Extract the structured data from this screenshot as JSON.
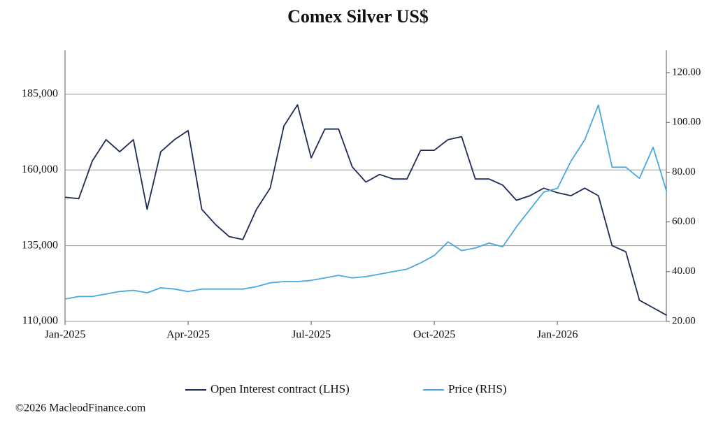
{
  "chart_data": {
    "type": "line",
    "title": "Comex Silver US$",
    "source": "©2026 MacleodFinance.com",
    "categories": [
      "Jan-2025",
      null,
      null,
      null,
      null,
      null,
      null,
      null,
      null,
      "Apr-2025",
      null,
      null,
      null,
      null,
      null,
      null,
      null,
      null,
      "Jul-2025",
      null,
      null,
      null,
      null,
      null,
      null,
      null,
      null,
      "Oct-2025",
      null,
      null,
      null,
      null,
      null,
      null,
      null,
      null,
      "Jan-2026",
      null,
      null,
      null,
      null,
      null,
      null,
      null,
      null
    ],
    "series": [
      {
        "name": "Open Interest contract (LHS)",
        "color": "#1f2a55",
        "values": [
          151000,
          150500,
          163000,
          170000,
          166000,
          170000,
          147000,
          166000,
          170000,
          173000,
          147000,
          142000,
          138000,
          137000,
          147000,
          154000,
          174500,
          181500,
          164000,
          173500,
          173500,
          161000,
          156000,
          158500,
          157000,
          157000,
          166500,
          166500,
          170000,
          171000,
          157000,
          157000,
          155000,
          150000,
          151500,
          154000,
          152500,
          151500,
          154000,
          151500,
          135000,
          133000,
          117000,
          114500,
          112000
        ]
      },
      {
        "name": "Price (RHS)",
        "color": "#4aa8df",
        "axis": "y2",
        "values": [
          29,
          30,
          30,
          31,
          32,
          32.5,
          31.5,
          33.5,
          33,
          32,
          33,
          33,
          33,
          33,
          34,
          35.5,
          36,
          36,
          36.5,
          37.5,
          38.5,
          37.5,
          38,
          39,
          40,
          41,
          43.5,
          46.5,
          52,
          48.5,
          49.5,
          51.5,
          50,
          58,
          65,
          72,
          73.5,
          84.5,
          93,
          107,
          82,
          82,
          77.5,
          90,
          72
        ]
      }
    ],
    "ylim": [
      110000,
      199500
    ],
    "yticks": [
      {
        "value": 110000,
        "label": "110,000"
      },
      {
        "value": 135000,
        "label": "135,000"
      },
      {
        "value": 160000,
        "label": "160,000"
      },
      {
        "value": 185000,
        "label": "185,000"
      }
    ],
    "y2lim": [
      20,
      129
    ],
    "y2ticks": [
      {
        "value": 20,
        "label": "20.00"
      },
      {
        "value": 40,
        "label": "40.00"
      },
      {
        "value": 60,
        "label": "60.00"
      },
      {
        "value": 80,
        "label": "80.00"
      },
      {
        "value": 100,
        "label": "100.00"
      },
      {
        "value": 120,
        "label": "120.00"
      }
    ],
    "grid": true
  }
}
